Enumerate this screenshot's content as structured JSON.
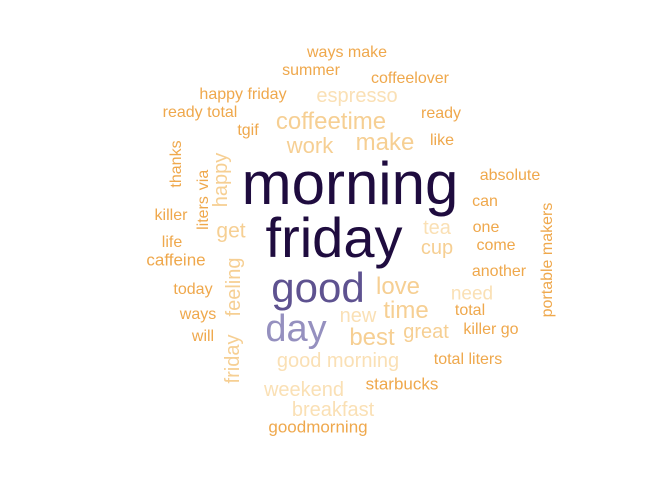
{
  "word_cloud": {
    "palette": {
      "darkest": "#1f0c3f",
      "dark": "#5e5290",
      "medium": "#9590bf",
      "orange": "#efa84c",
      "light_orange": "#f6cf93",
      "pale": "#fae0b5"
    },
    "words": [
      {
        "text": "morning",
        "color": "#1f0c3f"
      },
      {
        "text": "friday",
        "color": "#1f0c3f"
      },
      {
        "text": "good",
        "color": "#5e5290"
      },
      {
        "text": "day",
        "color": "#9590bf"
      },
      {
        "text": "coffeetime",
        "color": "#f6cf93"
      },
      {
        "text": "work",
        "color": "#f6cf93"
      },
      {
        "text": "make",
        "color": "#f6cf93"
      },
      {
        "text": "espresso",
        "color": "#fae0b5"
      },
      {
        "text": "love",
        "color": "#f6cf93"
      },
      {
        "text": "time",
        "color": "#f6cf93"
      },
      {
        "text": "best",
        "color": "#f6cf93"
      },
      {
        "text": "new",
        "color": "#fae0b5"
      },
      {
        "text": "great",
        "color": "#f6cf93"
      },
      {
        "text": "need",
        "color": "#fae0b5"
      },
      {
        "text": "tea",
        "color": "#fae0b5"
      },
      {
        "text": "cup",
        "color": "#f6cf93"
      },
      {
        "text": "get",
        "color": "#f6cf93"
      },
      {
        "text": "good morning",
        "color": "#fae0b5"
      },
      {
        "text": "weekend",
        "color": "#fae0b5"
      },
      {
        "text": "breakfast",
        "color": "#fae0b5"
      },
      {
        "text": "starbucks",
        "color": "#efa84c"
      },
      {
        "text": "goodmorning",
        "color": "#efa84c"
      },
      {
        "text": "ways make",
        "color": "#efa84c"
      },
      {
        "text": "summer",
        "color": "#efa84c"
      },
      {
        "text": "coffeelover",
        "color": "#efa84c"
      },
      {
        "text": "happy friday",
        "color": "#efa84c"
      },
      {
        "text": "ready total",
        "color": "#efa84c"
      },
      {
        "text": "ready",
        "color": "#efa84c"
      },
      {
        "text": "tgif",
        "color": "#efa84c"
      },
      {
        "text": "like",
        "color": "#efa84c"
      },
      {
        "text": "absolute",
        "color": "#efa84c"
      },
      {
        "text": "can",
        "color": "#efa84c"
      },
      {
        "text": "one",
        "color": "#efa84c"
      },
      {
        "text": "come",
        "color": "#efa84c"
      },
      {
        "text": "another",
        "color": "#efa84c"
      },
      {
        "text": "total",
        "color": "#efa84c"
      },
      {
        "text": "killer go",
        "color": "#efa84c"
      },
      {
        "text": "total liters",
        "color": "#efa84c"
      },
      {
        "text": "killer",
        "color": "#efa84c"
      },
      {
        "text": "life",
        "color": "#efa84c"
      },
      {
        "text": "caffeine",
        "color": "#efa84c"
      },
      {
        "text": "today",
        "color": "#efa84c"
      },
      {
        "text": "ways",
        "color": "#efa84c"
      },
      {
        "text": "will",
        "color": "#efa84c"
      },
      {
        "text": "thanks",
        "color": "#efa84c"
      },
      {
        "text": "via",
        "color": "#efa84c"
      },
      {
        "text": "liters",
        "color": "#efa84c"
      },
      {
        "text": "happy",
        "color": "#f6cf93"
      },
      {
        "text": "feeling",
        "color": "#f6cf93"
      },
      {
        "text": "friday",
        "color": "#f6cf93"
      },
      {
        "text": "portable makers",
        "color": "#efa84c"
      }
    ]
  }
}
